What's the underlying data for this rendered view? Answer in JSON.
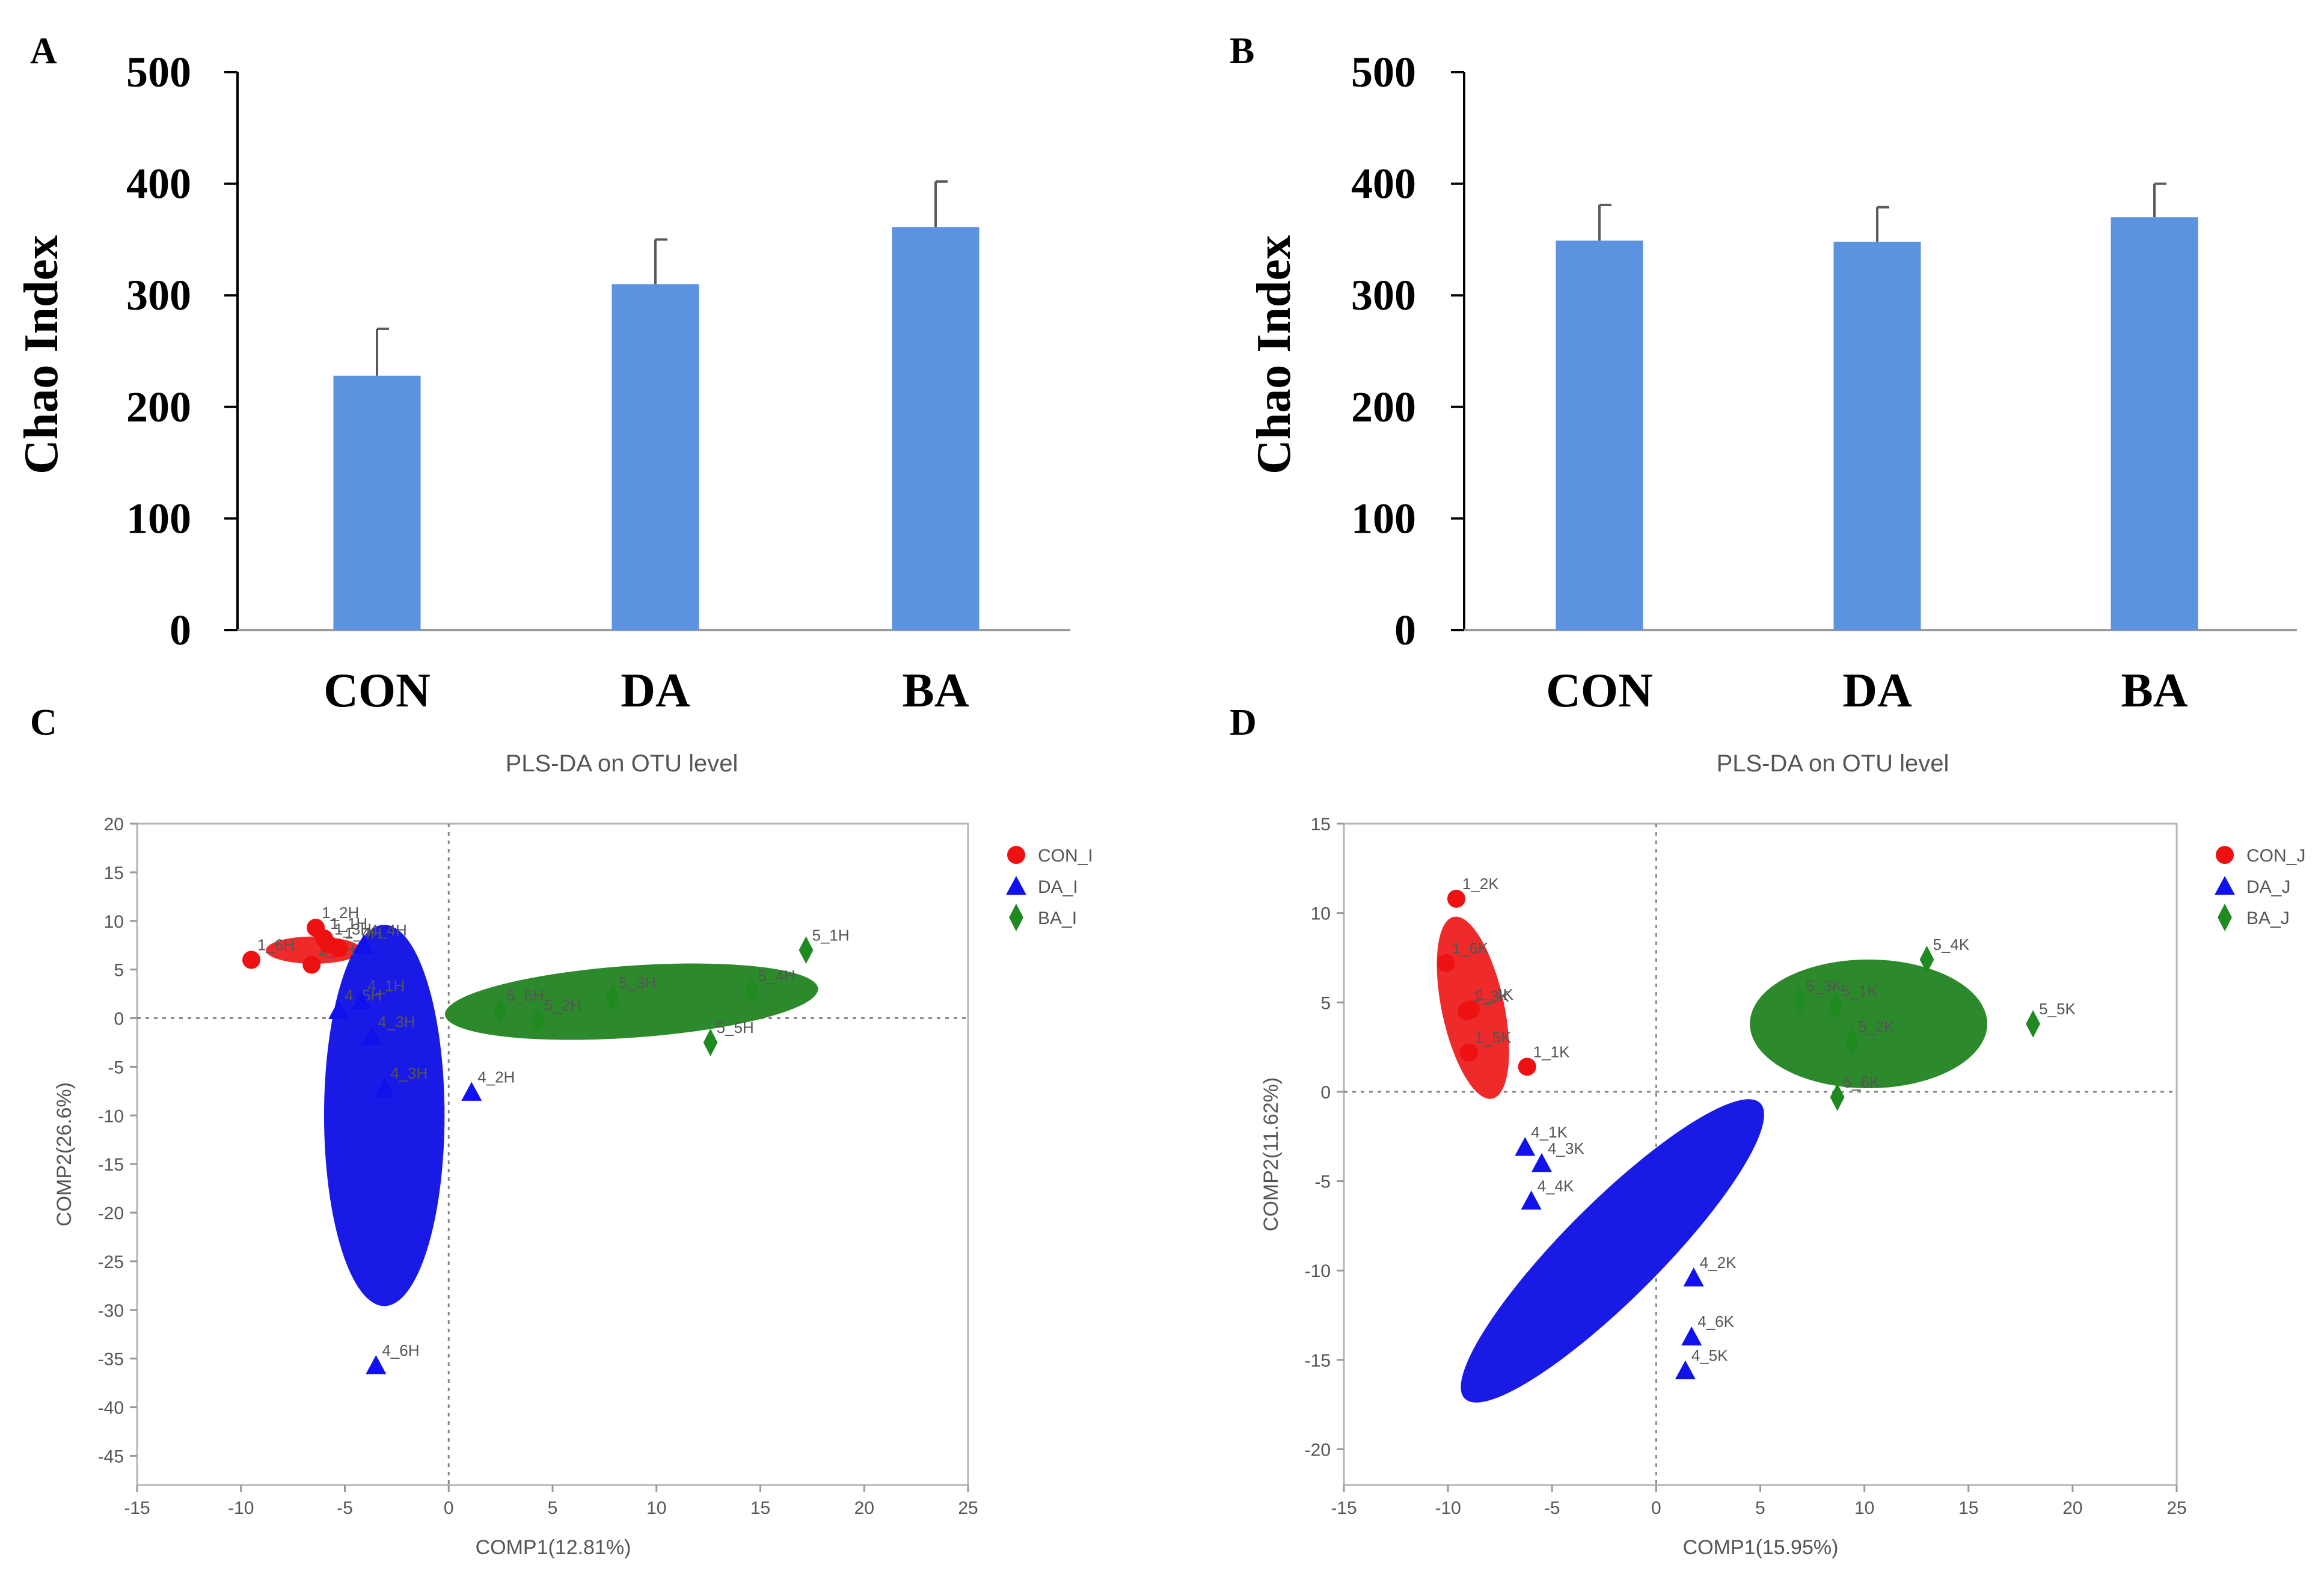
{
  "panel_letters": [
    "A",
    "B",
    "C",
    "D"
  ],
  "colors": {
    "bar": "#5b93e0",
    "CON": "#ee1111",
    "DA": "#1111ee",
    "BA": "#1f8a1f",
    "ellipse_CON": "#ee2a2a",
    "ellipse_DA": "#1a1ae6",
    "ellipse_BA": "#2c8a2c"
  },
  "chart_data": [
    {
      "panel": "A",
      "type": "bar",
      "categories": [
        "CON",
        "DA",
        "BA"
      ],
      "values": [
        228,
        310,
        361
      ],
      "errors": [
        42,
        40,
        41
      ],
      "ylabel": "Chao Index",
      "ylim": [
        0,
        500
      ],
      "yticks": [
        0,
        100,
        200,
        300,
        400,
        500
      ]
    },
    {
      "panel": "B",
      "type": "bar",
      "categories": [
        "CON",
        "DA",
        "BA"
      ],
      "values": [
        349,
        348,
        370
      ],
      "errors": [
        32,
        31,
        30
      ],
      "ylabel": "Chao Index",
      "ylim": [
        0,
        500
      ],
      "yticks": [
        0,
        100,
        200,
        300,
        400,
        500
      ]
    },
    {
      "panel": "C",
      "type": "scatter",
      "title": "PLS-DA on OTU level",
      "xlabel": "COMP1(12.81%)",
      "ylabel": "COMP2(26.6%)",
      "xlim": [
        -15,
        25
      ],
      "ylim": [
        -48,
        20
      ],
      "xticks": [
        -15,
        -10,
        -5,
        0,
        5,
        10,
        15,
        20,
        25
      ],
      "yticks": [
        20,
        15,
        10,
        5,
        0,
        -5,
        -10,
        -15,
        -20,
        -25,
        -30,
        -35,
        -40,
        -45
      ],
      "legend_position": "top-right",
      "series": [
        {
          "name": "CON_I",
          "group": "CON",
          "marker": "circle",
          "ellipse": {
            "cx": -6.5,
            "cy": 7,
            "rx": 2.3,
            "ry": 1.4,
            "angle": 0
          },
          "points": [
            {
              "label": "1_2H",
              "x": -6.4,
              "y": 9.3
            },
            {
              "label": "1_6H",
              "x": -9.5,
              "y": 6.0
            },
            {
              "label": "1_5H",
              "x": -6.6,
              "y": 5.5
            },
            {
              "label": "1_3H",
              "x": -5.8,
              "y": 7.6
            },
            {
              "label": "1_4H",
              "x": -5.3,
              "y": 7.2
            },
            {
              "label": "1_1H",
              "x": -6.0,
              "y": 8.2
            }
          ]
        },
        {
          "name": "DA_I",
          "group": "DA",
          "marker": "triangle",
          "ellipse": {
            "cx": -3.1,
            "cy": -10,
            "rx": 2.9,
            "ry": 19.6,
            "angle": 0
          },
          "points": [
            {
              "label": "4_4H",
              "x": -4.1,
              "y": 7.5
            },
            {
              "label": "4_5H",
              "x": -5.3,
              "y": 0.8
            },
            {
              "label": "4_1H",
              "x": -4.2,
              "y": 1.8
            },
            {
              "label": "4_3H",
              "x": -3.7,
              "y": -1.9
            },
            {
              "label": "4_3H",
              "x": -3.1,
              "y": -7.2
            },
            {
              "label": "4_2H",
              "x": 1.1,
              "y": -7.6
            },
            {
              "label": "4_6H",
              "x": -3.5,
              "y": -35.7
            }
          ]
        },
        {
          "name": "BA_I",
          "group": "BA",
          "marker": "diamond",
          "ellipse": {
            "cx": 8.8,
            "cy": 1.7,
            "rx": 9.0,
            "ry": 3.7,
            "angle": -4
          },
          "points": [
            {
              "label": "5_1H",
              "x": 17.2,
              "y": 7.0
            },
            {
              "label": "5_6H",
              "x": 2.5,
              "y": 0.8
            },
            {
              "label": "5_2H",
              "x": 4.3,
              "y": -0.2
            },
            {
              "label": "5_3H",
              "x": 7.9,
              "y": 2.1
            },
            {
              "label": "5_4H",
              "x": 14.6,
              "y": 2.8
            },
            {
              "label": "5_5H",
              "x": 12.6,
              "y": -2.5
            }
          ]
        }
      ]
    },
    {
      "panel": "D",
      "type": "scatter",
      "title": "PLS-DA on OTU level",
      "xlabel": "COMP1(15.95%)",
      "ylabel": "COMP2(11.62%)",
      "xlim": [
        -15,
        25
      ],
      "ylim": [
        -22,
        15
      ],
      "xticks": [
        -15,
        -10,
        -5,
        0,
        5,
        10,
        15,
        20,
        25
      ],
      "yticks": [
        15,
        10,
        5,
        0,
        -5,
        -10,
        -15,
        -20
      ],
      "legend_position": "top-right",
      "series": [
        {
          "name": "CON_J",
          "group": "CON",
          "marker": "circle",
          "ellipse": {
            "cx": -8.8,
            "cy": 4.7,
            "rx": 1.5,
            "ry": 5.2,
            "angle": -12
          },
          "points": [
            {
              "label": "1_2K",
              "x": -9.6,
              "y": 10.8
            },
            {
              "label": "1_6K",
              "x": -10.1,
              "y": 7.2
            },
            {
              "label": "1_4K",
              "x": -8.9,
              "y": 4.6
            },
            {
              "label": "1_3K",
              "x": -9.1,
              "y": 4.5
            },
            {
              "label": "1_5K",
              "x": -9.0,
              "y": 2.2
            },
            {
              "label": "1_1K",
              "x": -6.2,
              "y": 1.4
            }
          ]
        },
        {
          "name": "DA_J",
          "group": "DA",
          "marker": "triangle",
          "ellipse": {
            "cx": -2.1,
            "cy": -8.9,
            "rx": 10.8,
            "ry": 2.5,
            "angle": -45
          },
          "points": [
            {
              "label": "4_1K",
              "x": -6.3,
              "y": -3.1
            },
            {
              "label": "4_3K",
              "x": -5.5,
              "y": -4.0
            },
            {
              "label": "4_4K",
              "x": -6.0,
              "y": -6.1
            },
            {
              "label": "4_2K",
              "x": 1.8,
              "y": -10.4
            },
            {
              "label": "4_6K",
              "x": 1.7,
              "y": -13.7
            },
            {
              "label": "4_5K",
              "x": 1.4,
              "y": -15.6
            }
          ]
        },
        {
          "name": "BA_J",
          "group": "BA",
          "marker": "diamond",
          "ellipse": {
            "cx": 10.2,
            "cy": 3.8,
            "rx": 5.7,
            "ry": 3.6,
            "angle": 0
          },
          "points": [
            {
              "label": "5_4K",
              "x": 13.0,
              "y": 7.4
            },
            {
              "label": "5_3K",
              "x": 6.9,
              "y": 5.1
            },
            {
              "label": "5_1K",
              "x": 8.6,
              "y": 4.8
            },
            {
              "label": "5_2K",
              "x": 9.4,
              "y": 2.8
            },
            {
              "label": "5_6K",
              "x": 8.7,
              "y": -0.3
            },
            {
              "label": "5_5K",
              "x": 18.1,
              "y": 3.8
            }
          ]
        }
      ]
    }
  ]
}
